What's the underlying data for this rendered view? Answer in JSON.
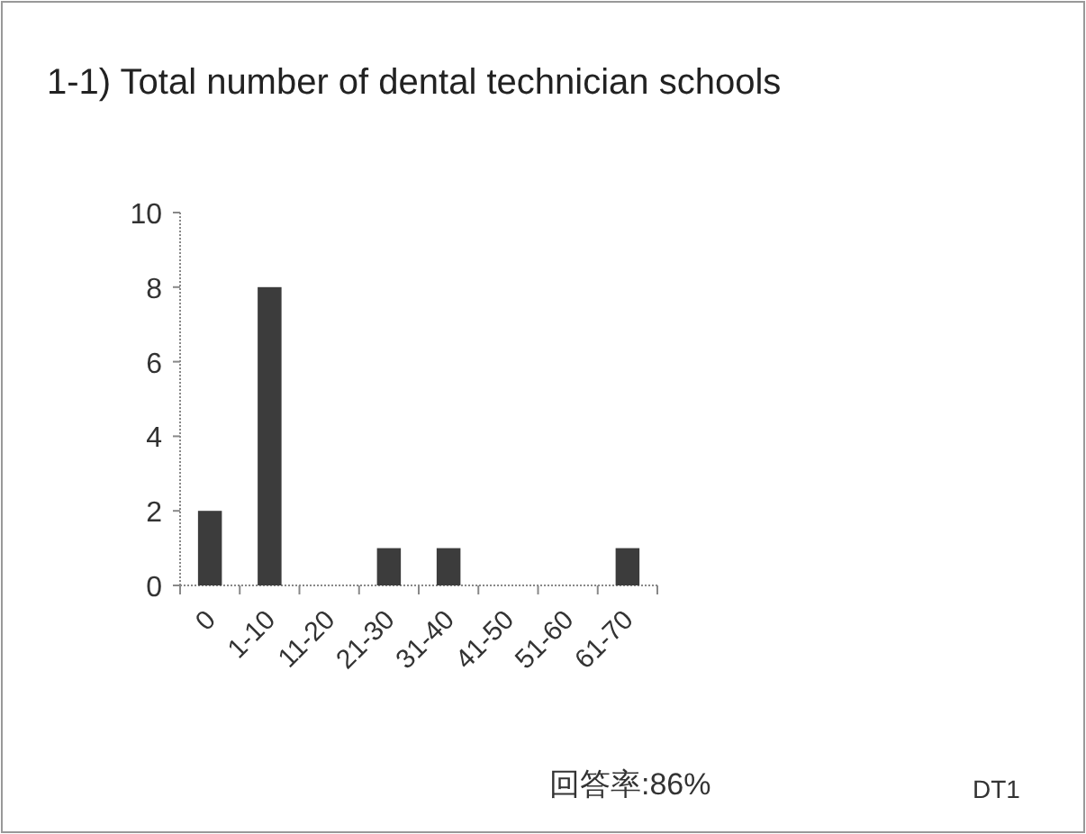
{
  "chart_data": {
    "type": "bar",
    "title": "1-1) Total number of dental technician schools",
    "categories": [
      "0",
      "1-10",
      "11-20",
      "21-30",
      "31-40",
      "41-50",
      "51-60",
      "61-70"
    ],
    "values": [
      2,
      8,
      0,
      1,
      1,
      0,
      0,
      1
    ],
    "color": "#3c3c3c",
    "ylim": [
      0,
      10
    ],
    "yticks": [
      0,
      2,
      4,
      6,
      8,
      10
    ],
    "annotations": [
      "回答率:86%",
      "DT1"
    ]
  }
}
